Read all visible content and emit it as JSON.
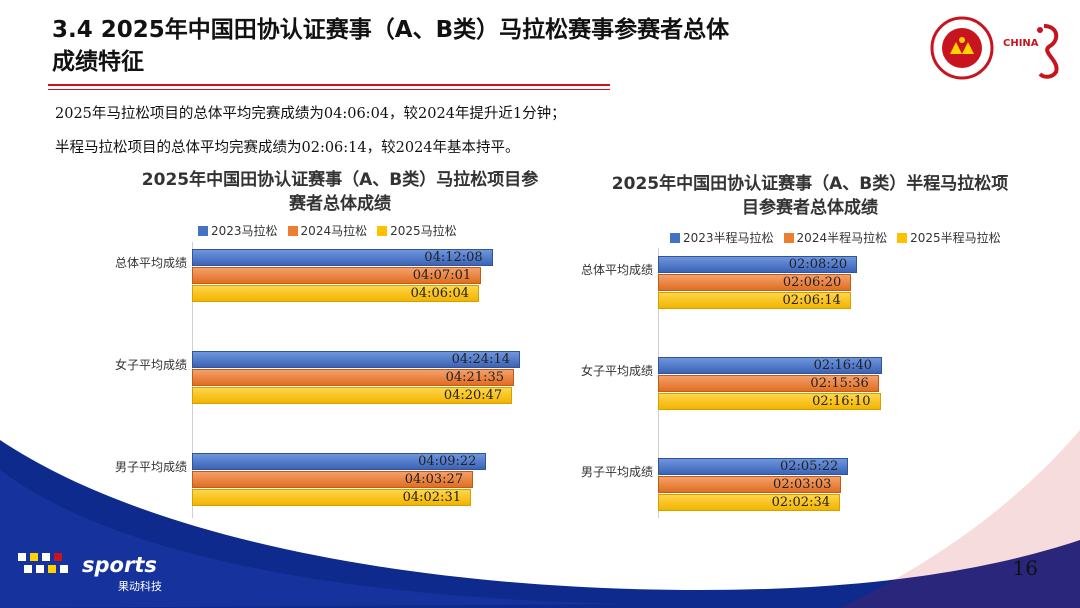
{
  "title": "3.4 2025年中国田协认证赛事（A、B类）马拉松赛事参赛者总体成绩特征",
  "summary": [
    "2025年马拉松项目的总体平均完赛成绩为04:06:04，较2024年提升近1分钟；",
    "半程马拉松项目的总体平均完赛成绩为02:06:14，较2024年基本持平。"
  ],
  "page_number": "16",
  "logos": {
    "sports_text": "sports",
    "sports_sub": "果动科技",
    "china_text": "CHINA"
  },
  "colors": {
    "accent": "#c8141e",
    "navy": "#0d2a8c",
    "series": [
      "#4472c4",
      "#ed7d31",
      "#ffc000"
    ]
  },
  "chart_data": [
    {
      "type": "bar",
      "orientation": "horizontal",
      "title": "2025年中国田协认证赛事（A、B类）马拉松项目参赛者总体成绩",
      "categories": [
        "总体平均成绩",
        "女子平均成绩",
        "男子平均成绩"
      ],
      "series": [
        {
          "name": "2023马拉松",
          "values": [
            "04:12:08",
            "04:24:14",
            "04:09:22"
          ]
        },
        {
          "name": "2024马拉松",
          "values": [
            "04:07:01",
            "04:21:35",
            "04:03:27"
          ]
        },
        {
          "name": "2025马拉松",
          "values": [
            "04:06:04",
            "04:20:47",
            "04:02:31"
          ]
        }
      ],
      "legend": "top"
    },
    {
      "type": "bar",
      "orientation": "horizontal",
      "title": "2025年中国田协认证赛事（A、B类）半程马拉松项目参赛者总体成绩",
      "categories": [
        "总体平均成绩",
        "女子平均成绩",
        "男子平均成绩"
      ],
      "series": [
        {
          "name": "2023半程马拉松",
          "values": [
            "02:08:20",
            "02:16:40",
            "02:05:22"
          ]
        },
        {
          "name": "2024半程马拉松",
          "values": [
            "02:06:20",
            "02:15:36",
            "02:03:03"
          ]
        },
        {
          "name": "2025半程马拉松",
          "values": [
            "02:06:14",
            "02:16:10",
            "02:02:34"
          ]
        }
      ],
      "legend": "top"
    }
  ]
}
